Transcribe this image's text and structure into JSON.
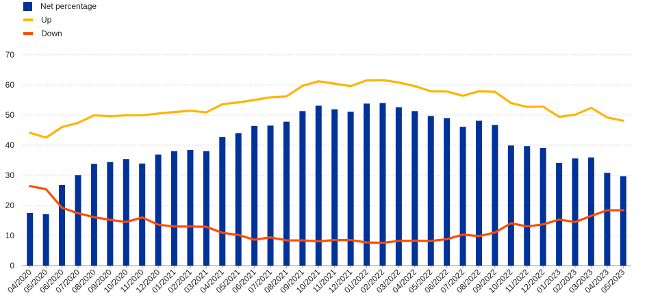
{
  "chart_data": {
    "type": "bar",
    "title": "",
    "xlabel": "",
    "ylabel": "",
    "ylim": [
      0,
      70
    ],
    "yticks": [
      0,
      10,
      20,
      30,
      40,
      50,
      60,
      70
    ],
    "grid": true,
    "legend_position": "top-left",
    "categories": [
      "04/2020",
      "05/2020",
      "06/2020",
      "07/2020",
      "08/2020",
      "09/2020",
      "10/2020",
      "11/2020",
      "12/2020",
      "01/2021",
      "02/2021",
      "03/2021",
      "04/2021",
      "05/2021",
      "06/2021",
      "07/2021",
      "08/2021",
      "09/2021",
      "10/2021",
      "11/2021",
      "12/2021",
      "01/2022",
      "02/2022",
      "03/2022",
      "04/2022",
      "05/2022",
      "06/2022",
      "07/2022",
      "08/2022",
      "09/2022",
      "10/2022",
      "11/2022",
      "12/2022",
      "01/2023",
      "02/2023",
      "03/2023",
      "04/2023",
      "05/2023"
    ],
    "series": [
      {
        "name": "Net percentage",
        "kind": "bar",
        "color": "#003299",
        "values": [
          17.5,
          17.1,
          26.8,
          30.0,
          33.8,
          34.4,
          35.4,
          33.9,
          36.9,
          38.0,
          38.4,
          38.0,
          42.7,
          44.0,
          46.4,
          46.5,
          47.8,
          51.3,
          53.1,
          51.9,
          51.1,
          53.8,
          54.0,
          52.6,
          51.3,
          49.7,
          49.0,
          46.1,
          48.1,
          46.7,
          39.9,
          39.7,
          39.1,
          34.1,
          35.6,
          35.9,
          30.8,
          29.7
        ]
      },
      {
        "name": "Up",
        "kind": "line",
        "color": "#ffb400",
        "values": [
          44.1,
          42.5,
          46.0,
          47.4,
          49.9,
          49.6,
          49.9,
          49.9,
          50.5,
          51.0,
          51.4,
          50.9,
          53.6,
          54.2,
          55.0,
          55.9,
          56.2,
          59.7,
          61.2,
          60.4,
          59.6,
          61.5,
          61.6,
          60.8,
          59.6,
          57.9,
          57.8,
          56.4,
          57.9,
          57.7,
          54.0,
          52.7,
          52.8,
          49.4,
          50.1,
          52.4,
          49.2,
          48.1
        ]
      },
      {
        "name": "Down",
        "kind": "line",
        "color": "#ff4b00",
        "values": [
          26.4,
          25.4,
          19.2,
          17.4,
          16.1,
          15.2,
          14.5,
          16.0,
          13.6,
          13.0,
          13.0,
          12.9,
          10.9,
          10.2,
          8.6,
          9.4,
          8.4,
          8.4,
          8.1,
          8.5,
          8.5,
          7.7,
          7.6,
          8.2,
          8.3,
          8.2,
          8.8,
          10.3,
          9.8,
          11.0,
          14.1,
          13.0,
          13.7,
          15.3,
          14.5,
          16.5,
          18.4,
          18.4
        ]
      }
    ]
  }
}
